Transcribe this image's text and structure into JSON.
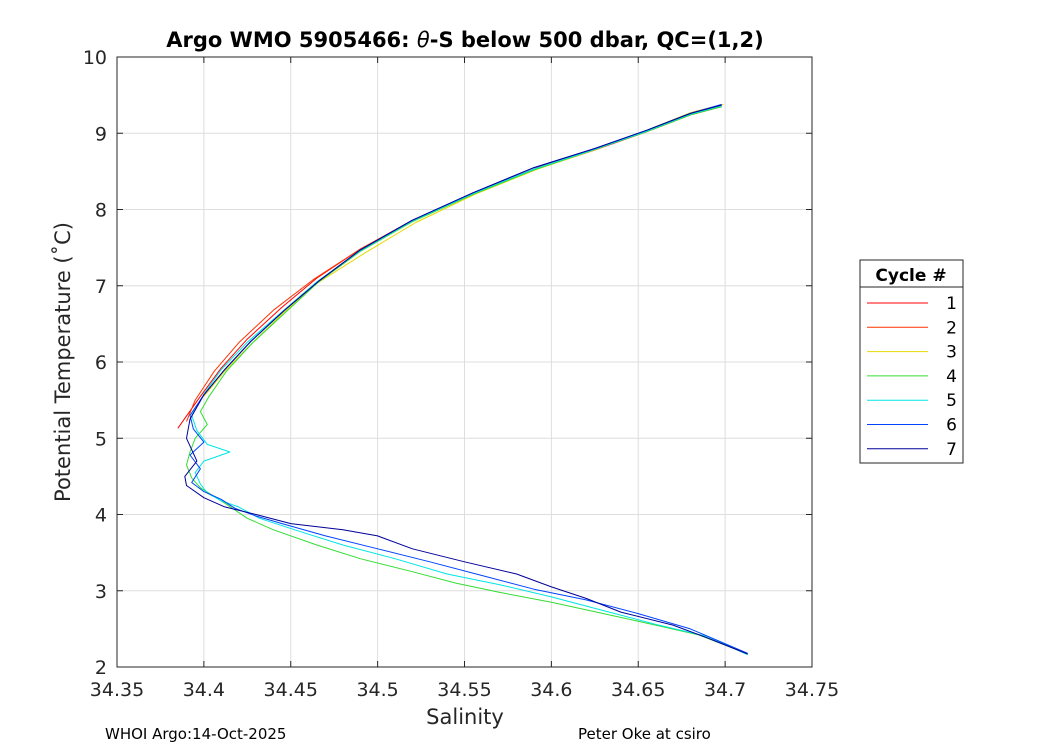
{
  "chart_data": {
    "type": "line",
    "title": "Argo WMO 5905466: θ-S below 500 dbar,  QC=(1,2)",
    "title_parts": {
      "prefix": "Argo WMO 5905466: ",
      "theta": "θ",
      "suffix": "-S below 500 dbar,  QC=(1,2)"
    },
    "xlabel": "Salinity",
    "ylabel": "Potential Temperature (˚C)",
    "xlim": [
      34.35,
      34.75
    ],
    "ylim": [
      2,
      10
    ],
    "xticks": [
      "34.35",
      "34.4",
      "34.45",
      "34.5",
      "34.55",
      "34.6",
      "34.65",
      "34.7",
      "34.75"
    ],
    "yticks": [
      "2",
      "3",
      "4",
      "5",
      "6",
      "7",
      "8",
      "9",
      "10"
    ],
    "grid": true,
    "legend": {
      "title": "Cycle #",
      "position": "outside-right"
    },
    "series": [
      {
        "name": "1",
        "color": "#ff0000",
        "x": [
          34.698,
          34.68,
          34.655,
          34.625,
          34.59,
          34.555,
          34.52,
          34.49,
          34.465,
          34.445,
          34.425,
          34.41,
          34.398,
          34.385
        ],
        "y": [
          9.35,
          9.24,
          9.02,
          8.78,
          8.52,
          8.2,
          7.85,
          7.48,
          7.1,
          6.72,
          6.3,
          5.92,
          5.55,
          5.13
        ]
      },
      {
        "name": "2",
        "color": "#ff3300",
        "x": [
          34.698,
          34.682,
          34.657,
          34.627,
          34.592,
          34.556,
          34.52,
          34.49,
          34.463,
          34.44,
          34.42,
          34.406,
          34.395,
          34.39
        ],
        "y": [
          9.37,
          9.28,
          9.05,
          8.8,
          8.55,
          8.22,
          7.86,
          7.48,
          7.08,
          6.68,
          6.25,
          5.88,
          5.5,
          5.22
        ]
      },
      {
        "name": "3",
        "color": "#e6d800",
        "x": [
          34.699,
          34.68,
          34.655,
          34.626,
          34.592,
          34.556,
          34.522,
          34.492,
          34.465,
          34.445,
          34.427,
          34.412,
          34.4
        ],
        "y": [
          9.38,
          9.27,
          9.04,
          8.79,
          8.53,
          8.2,
          7.83,
          7.42,
          7.03,
          6.63,
          6.23,
          5.88,
          5.55
        ]
      },
      {
        "name": "4",
        "color": "#33dd33",
        "x": [
          34.698,
          34.68,
          34.655,
          34.624,
          34.59,
          34.555,
          34.52,
          34.49,
          34.466,
          34.447,
          34.428,
          34.413,
          34.403,
          34.398,
          34.402,
          34.395,
          34.392,
          34.39,
          34.393,
          34.398,
          34.405,
          34.412,
          34.425,
          34.44,
          34.465,
          34.49,
          34.52,
          34.545,
          34.57,
          34.6,
          34.63,
          34.66,
          34.685,
          34.712
        ],
        "y": [
          9.35,
          9.24,
          9.02,
          8.78,
          8.52,
          8.2,
          7.84,
          7.45,
          7.05,
          6.65,
          6.25,
          5.88,
          5.55,
          5.35,
          5.18,
          5.0,
          4.82,
          4.65,
          4.48,
          4.35,
          4.25,
          4.15,
          3.95,
          3.8,
          3.6,
          3.42,
          3.25,
          3.1,
          2.98,
          2.85,
          2.7,
          2.55,
          2.42,
          2.18
        ]
      },
      {
        "name": "5",
        "color": "#00e5e5",
        "x": [
          34.698,
          34.68,
          34.655,
          34.625,
          34.59,
          34.555,
          34.52,
          34.49,
          34.465,
          34.445,
          34.425,
          34.41,
          34.4,
          34.393,
          34.396,
          34.402,
          34.415,
          34.4,
          34.395,
          34.398,
          34.402,
          34.41,
          34.42,
          34.432,
          34.455,
          34.48,
          34.51,
          34.54,
          34.57,
          34.6,
          34.63,
          34.66,
          34.69,
          34.713
        ],
        "y": [
          9.36,
          9.25,
          9.03,
          8.79,
          8.53,
          8.21,
          7.85,
          7.46,
          7.05,
          6.66,
          6.26,
          5.9,
          5.58,
          5.3,
          5.1,
          4.92,
          4.82,
          4.7,
          4.55,
          4.4,
          4.28,
          4.18,
          4.1,
          3.95,
          3.78,
          3.6,
          3.42,
          3.22,
          3.08,
          2.92,
          2.74,
          2.56,
          2.4,
          2.16
        ]
      },
      {
        "name": "6",
        "color": "#0044ff",
        "x": [
          34.698,
          34.68,
          34.655,
          34.625,
          34.59,
          34.555,
          34.52,
          34.49,
          34.466,
          34.446,
          34.427,
          34.412,
          34.4,
          34.392,
          34.394,
          34.4,
          34.392,
          34.398,
          34.393,
          34.4,
          34.41,
          34.418,
          34.43,
          34.445,
          34.47,
          34.5,
          34.53,
          34.56,
          34.59,
          34.62,
          34.65,
          34.68,
          34.713
        ],
        "y": [
          9.38,
          9.26,
          9.04,
          8.8,
          8.55,
          8.22,
          7.86,
          7.47,
          7.06,
          6.67,
          6.27,
          5.9,
          5.57,
          5.3,
          5.12,
          4.95,
          4.78,
          4.6,
          4.42,
          4.3,
          4.2,
          4.08,
          3.98,
          3.88,
          3.72,
          3.55,
          3.38,
          3.2,
          3.02,
          2.88,
          2.7,
          2.5,
          2.18
        ]
      },
      {
        "name": "7",
        "color": "#000099",
        "x": [
          34.698,
          34.68,
          34.655,
          34.625,
          34.59,
          34.555,
          34.52,
          34.49,
          34.466,
          34.446,
          34.427,
          34.412,
          34.4,
          34.392,
          34.39,
          34.396,
          34.389,
          34.39,
          34.4,
          34.412,
          34.43,
          34.45,
          34.48,
          34.5,
          34.52,
          34.55,
          34.58,
          34.6,
          34.62,
          34.64,
          34.67,
          34.69,
          34.713
        ],
        "y": [
          9.37,
          9.26,
          9.04,
          8.8,
          8.55,
          8.22,
          7.86,
          7.47,
          7.06,
          6.67,
          6.27,
          5.9,
          5.57,
          5.25,
          5.0,
          4.7,
          4.5,
          4.38,
          4.22,
          4.1,
          4.0,
          3.88,
          3.8,
          3.72,
          3.55,
          3.38,
          3.22,
          3.05,
          2.9,
          2.72,
          2.55,
          2.38,
          2.17
        ]
      }
    ]
  },
  "footer": {
    "left": "WHOI Argo:14-Oct-2025",
    "right": "Peter Oke at csiro"
  }
}
